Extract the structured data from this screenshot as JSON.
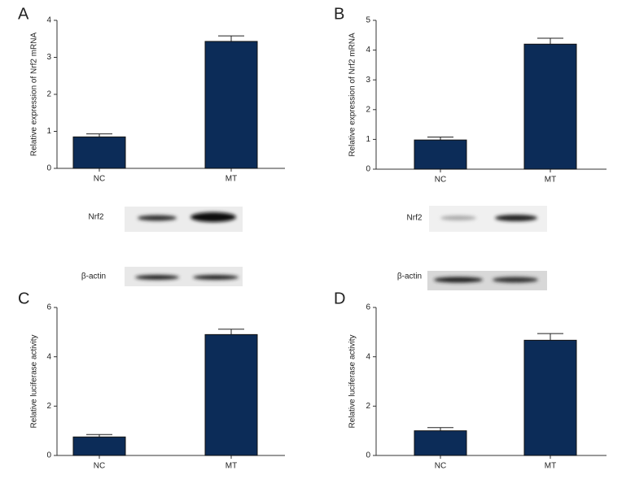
{
  "chart_data": [
    {
      "type": "bar",
      "panel": "A",
      "ylabel": "Relative expression of Nrf2 mRNA",
      "categories": [
        "NC",
        "MT"
      ],
      "values": [
        0.85,
        3.43
      ],
      "errors": [
        0.08,
        0.15
      ],
      "color": "#0c2c58",
      "ylim": [
        0,
        4
      ],
      "yticks": [
        0,
        1,
        2,
        3,
        4
      ],
      "blots": [
        "Nrf2",
        "β-actin"
      ]
    },
    {
      "type": "bar",
      "panel": "B",
      "ylabel": "Relative expression of Nrf2 mRNA",
      "categories": [
        "NC",
        "MT"
      ],
      "values": [
        0.98,
        4.2
      ],
      "errors": [
        0.1,
        0.2
      ],
      "color": "#0c2c58",
      "ylim": [
        0,
        5
      ],
      "yticks": [
        0,
        1,
        2,
        3,
        4,
        5
      ],
      "blots": [
        "Nrf2",
        "β-actin"
      ]
    },
    {
      "type": "bar",
      "panel": "C",
      "ylabel": "Relative luciferase activity",
      "categories": [
        "NC",
        "MT"
      ],
      "values": [
        0.75,
        4.9
      ],
      "errors": [
        0.1,
        0.22
      ],
      "color": "#0c2c58",
      "ylim": [
        0,
        6
      ],
      "yticks": [
        0,
        2,
        4,
        6
      ]
    },
    {
      "type": "bar",
      "panel": "D",
      "ylabel": "Relative luciferase activity",
      "categories": [
        "NC",
        "MT"
      ],
      "values": [
        1.0,
        4.67
      ],
      "errors": [
        0.13,
        0.27
      ],
      "color": "#0c2c58",
      "ylim": [
        0,
        6
      ],
      "yticks": [
        0,
        2,
        4,
        6
      ]
    }
  ]
}
